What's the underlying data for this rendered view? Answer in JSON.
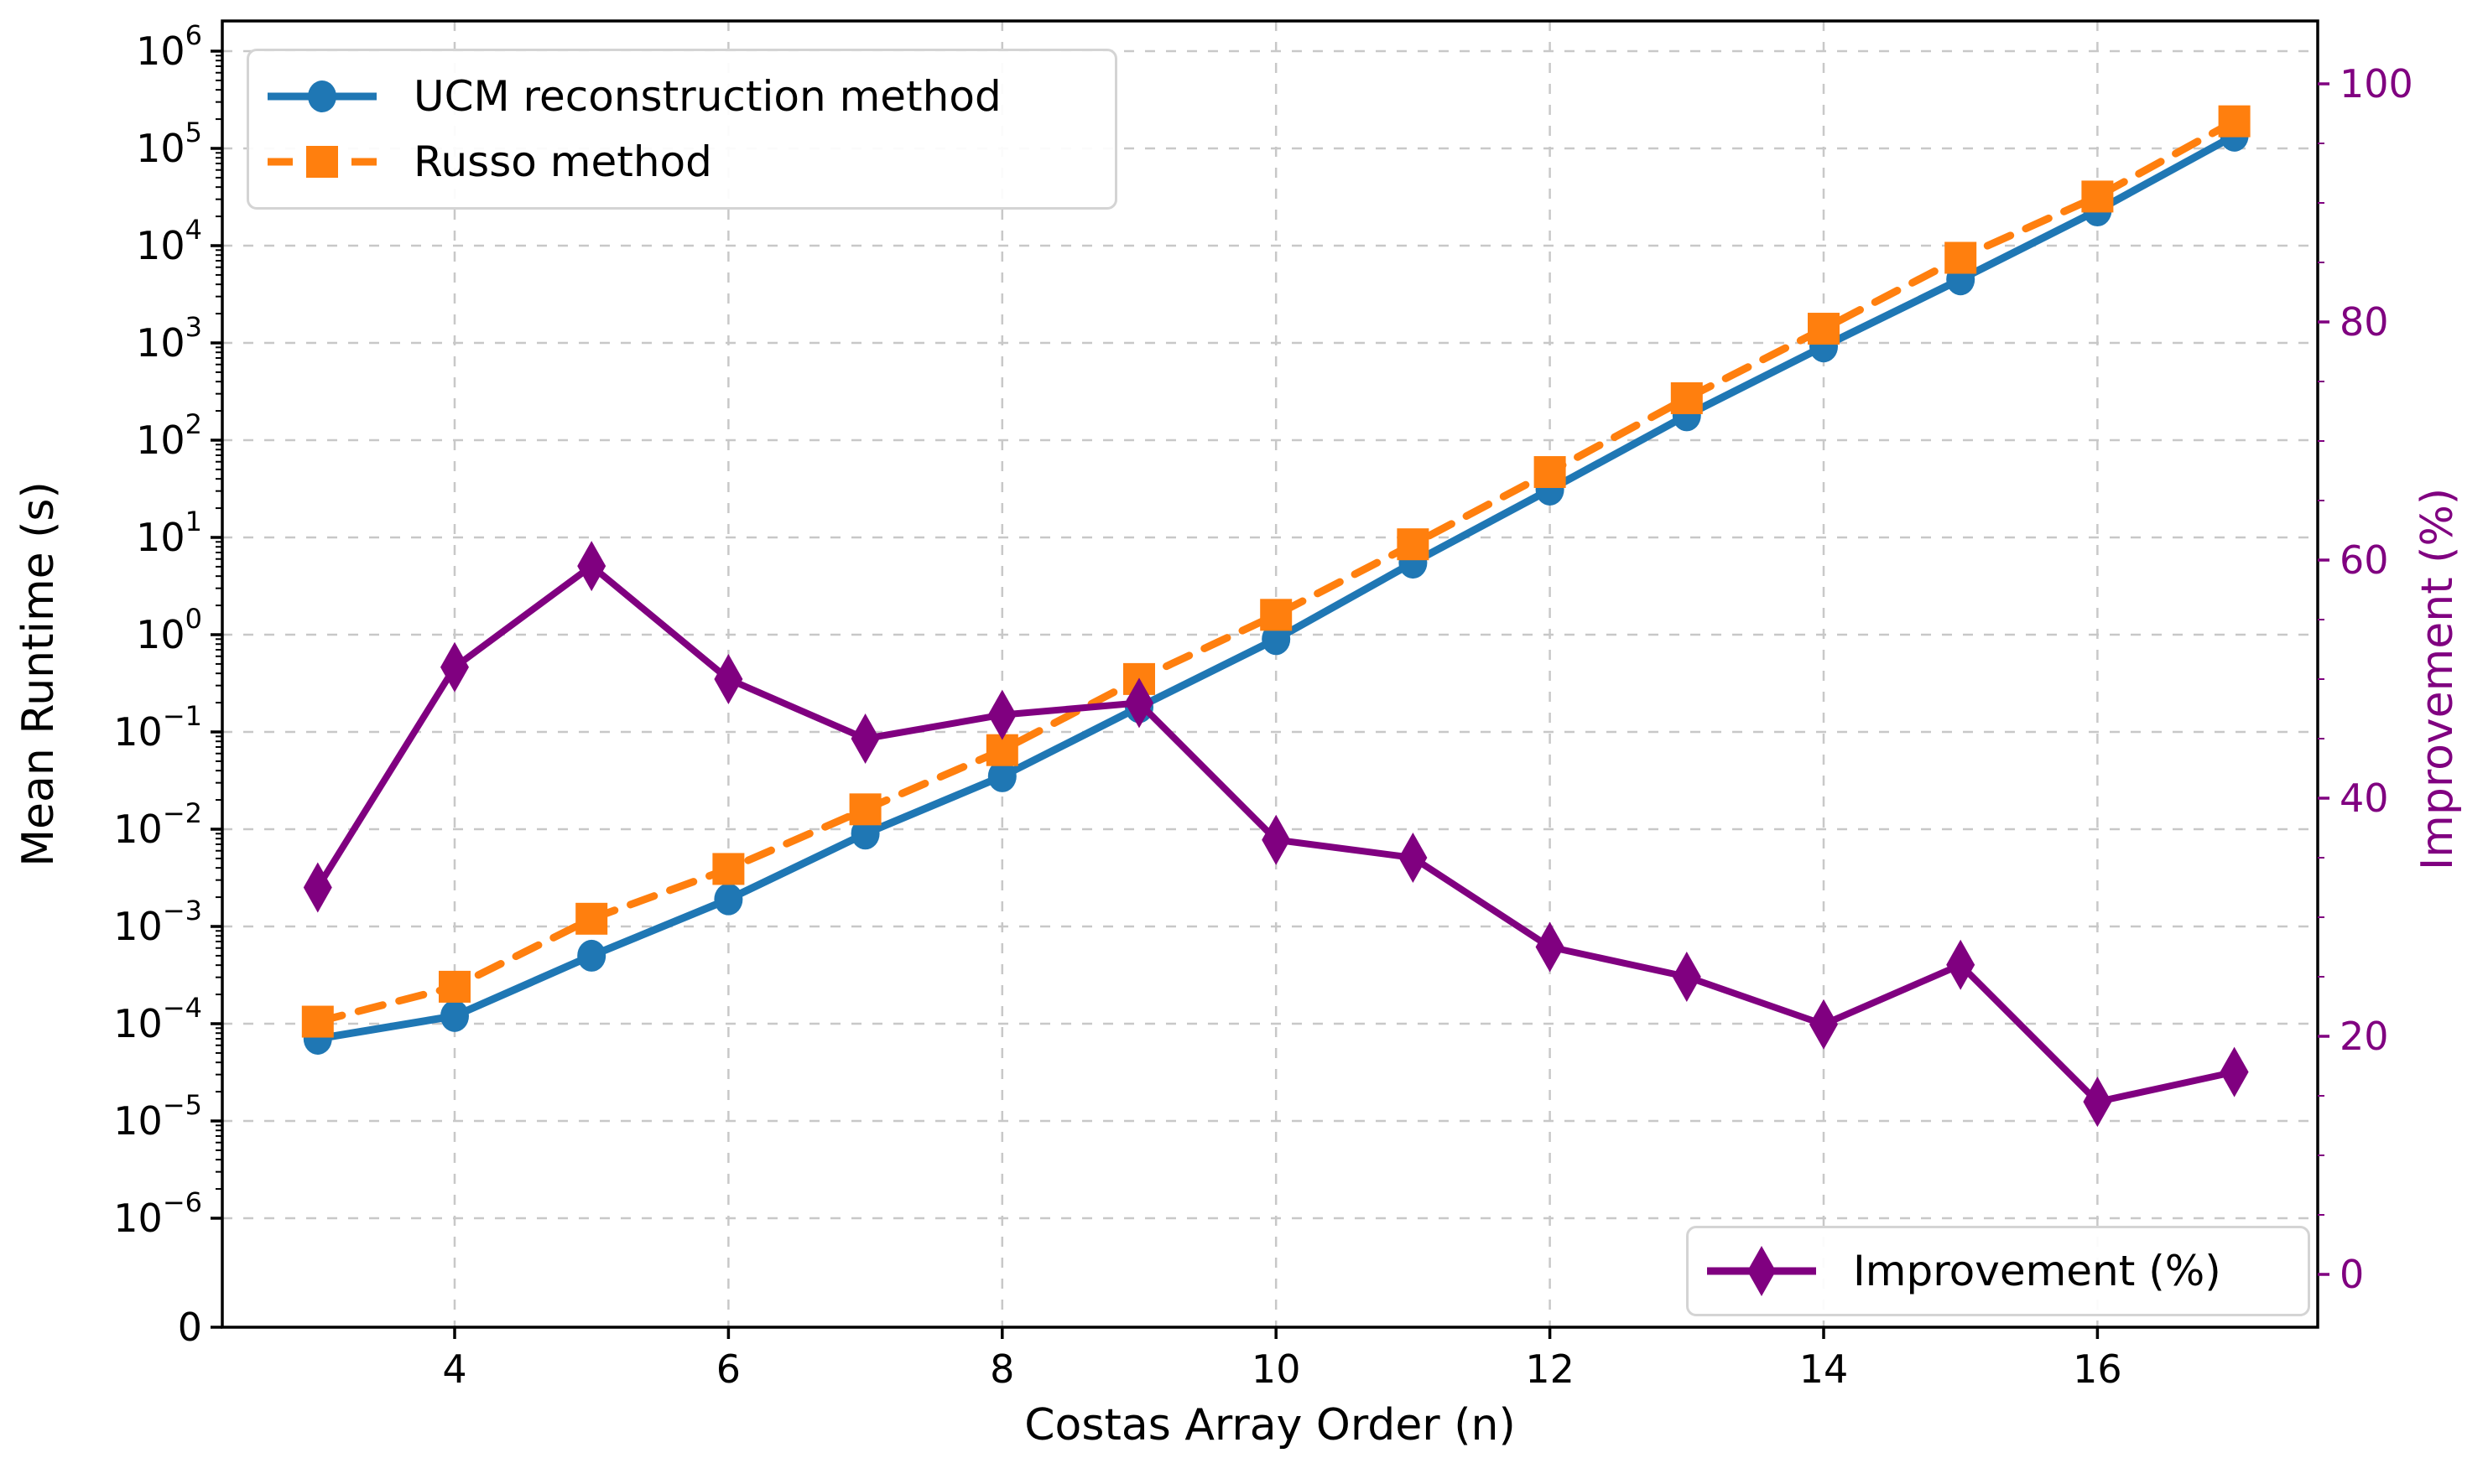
{
  "chart_data": {
    "type": "line",
    "title": "",
    "xlabel": "Costas Array Order (n)",
    "ylabel_left": "Mean Runtime (s)",
    "ylabel_right": "Improvement (%)",
    "x": [
      3,
      4,
      5,
      6,
      7,
      8,
      9,
      10,
      11,
      12,
      13,
      14,
      15,
      16,
      17
    ],
    "series": [
      {
        "name": "UCM reconstruction method",
        "color": "#1f77b4",
        "line_style": "solid",
        "marker": "circle",
        "axis": "left",
        "values": [
          7e-05,
          0.00012,
          0.0005,
          0.0019,
          0.009,
          0.035,
          0.18,
          0.9,
          5.5,
          31,
          180,
          920,
          4500,
          23000,
          135000
        ]
      },
      {
        "name": "Russo method",
        "color": "#ff7f0e",
        "line_style": "dashed",
        "marker": "square",
        "axis": "left",
        "values": [
          0.000105,
          0.00024,
          0.0012,
          0.0039,
          0.016,
          0.065,
          0.35,
          1.6,
          8.5,
          47,
          270,
          1400,
          7500,
          32000,
          190000
        ]
      },
      {
        "name": "Improvement (%)",
        "color": "#800080",
        "line_style": "solid",
        "marker": "thin-diamond",
        "axis": "right",
        "values": [
          32.5,
          51,
          59.5,
          50,
          45,
          47,
          48,
          36.5,
          35,
          27.5,
          25,
          21,
          26,
          14.5,
          17
        ]
      }
    ],
    "left_axis": {
      "scale": "symlog",
      "tick_exponents": [
        6,
        5,
        4,
        3,
        2,
        1,
        0,
        -1,
        -2,
        -3,
        -4,
        -5,
        -6
      ],
      "zero_tick_label": "0",
      "tick_color": "#000000"
    },
    "right_axis": {
      "ticks": [
        0,
        20,
        40,
        60,
        80,
        100
      ],
      "minor_step": 5,
      "tick_color": "#800080"
    },
    "x_ticks": [
      4,
      6,
      8,
      10,
      12,
      14,
      16
    ],
    "grid": true,
    "grid_color": "#c8c8c8",
    "background": "#ffffff",
    "spine_color": "#000000",
    "legend_runtime_position": "upper left",
    "legend_improvement_position": "lower right"
  }
}
